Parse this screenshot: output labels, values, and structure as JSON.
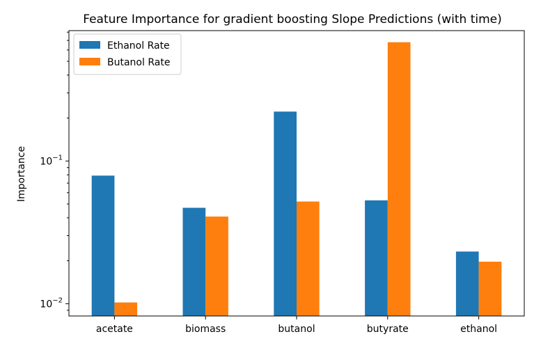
{
  "chart_data": {
    "type": "bar",
    "title": "Feature Importance for gradient boosting Slope Predictions (with time)",
    "xlabel": "",
    "ylabel": "Importance",
    "yscale": "log",
    "ylim": [
      0.0082,
      0.82
    ],
    "categories": [
      "acetate",
      "biomass",
      "butanol",
      "butyrate",
      "ethanol"
    ],
    "series": [
      {
        "name": "Ethanol Rate",
        "color": "#1f77b4",
        "values": [
          0.079,
          0.047,
          0.222,
          0.053,
          0.0232
        ]
      },
      {
        "name": "Butanol Rate",
        "color": "#ff7f0e",
        "values": [
          0.0102,
          0.0408,
          0.052,
          0.68,
          0.0197
        ]
      }
    ],
    "major_ticks": [
      {
        "value": 0.1,
        "base": "10",
        "exp": "−1"
      },
      {
        "value": 0.01,
        "base": "10",
        "exp": "−2"
      }
    ],
    "grid": false,
    "legend_position": "upper-left"
  }
}
